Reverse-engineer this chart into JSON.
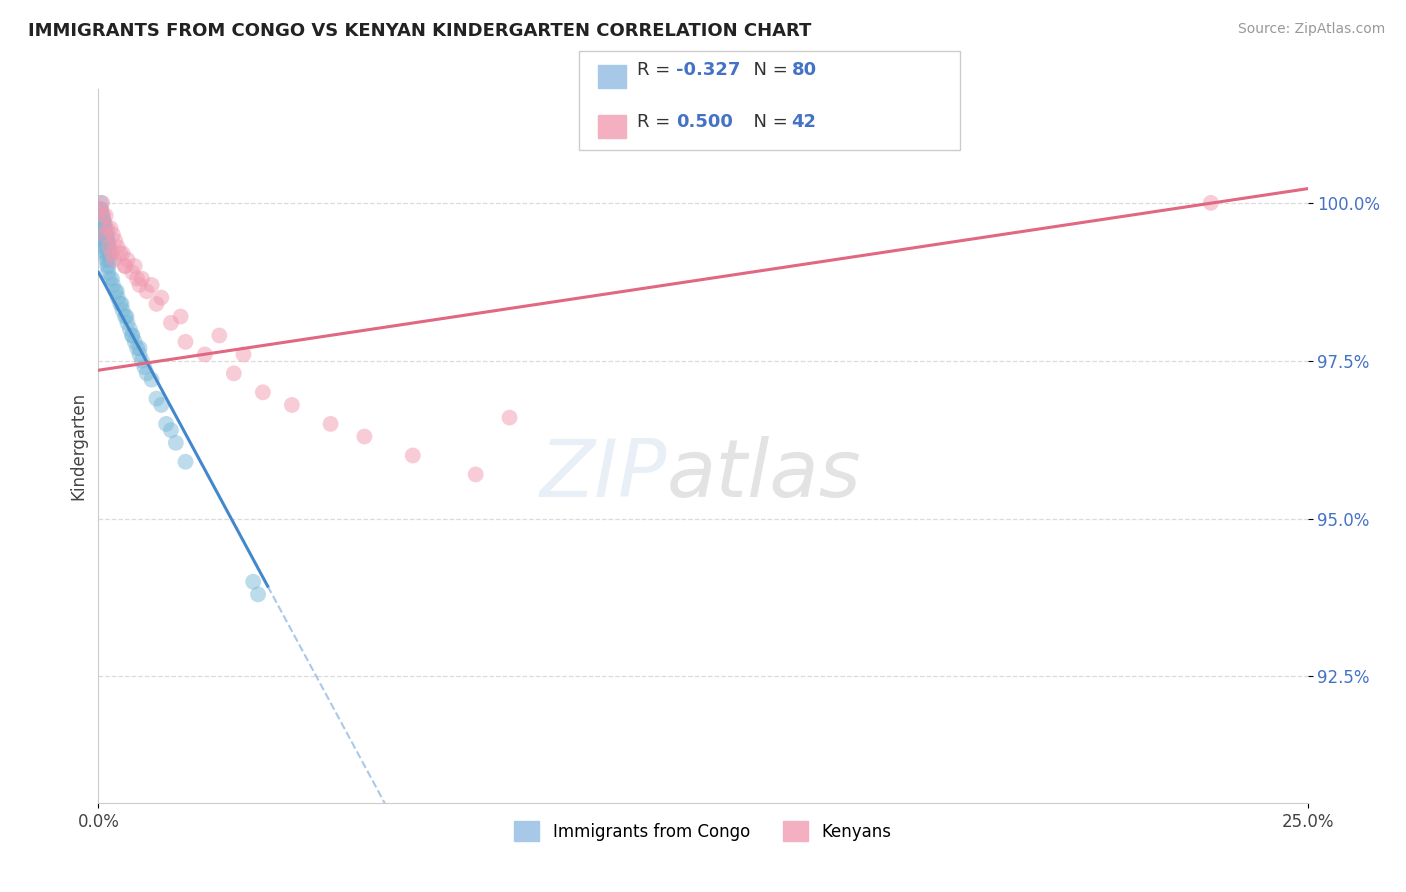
{
  "title": "IMMIGRANTS FROM CONGO VS KENYAN KINDERGARTEN CORRELATION CHART",
  "source": "Source: ZipAtlas.com",
  "ylabel_label": "Kindergarten",
  "legend_entries": [
    {
      "label": "Immigrants from Congo",
      "color": "#a8c8e8"
    },
    {
      "label": "Kenyans",
      "color": "#f4b0c0"
    }
  ],
  "r_blue": "-0.327",
  "n_blue": "80",
  "r_pink": "0.500",
  "n_pink": "42",
  "blue_scatter_color": "#7ab8d8",
  "pink_scatter_color": "#f09ab0",
  "blue_line_color": "#4488cc",
  "pink_line_color": "#e06880",
  "background_color": "#ffffff",
  "grid_color": "#d8d8d8",
  "yticks": [
    92.5,
    95.0,
    97.5,
    100.0
  ],
  "xticks": [
    0.0,
    25.0
  ],
  "xlim": [
    0.0,
    25.0
  ],
  "ylim": [
    90.5,
    101.8
  ],
  "blue_solid_xend": 3.5,
  "pink_solid_xend": 25.0,
  "blue_line_y0": 98.9,
  "blue_line_slope": -1.42,
  "pink_line_y0": 97.35,
  "pink_line_slope": 0.115,
  "blue_scatter_x": [
    0.05,
    0.05,
    0.08,
    0.1,
    0.12,
    0.14,
    0.16,
    0.18,
    0.2,
    0.22,
    0.05,
    0.07,
    0.09,
    0.11,
    0.13,
    0.15,
    0.17,
    0.19,
    0.21,
    0.23,
    0.06,
    0.08,
    0.1,
    0.12,
    0.14,
    0.16,
    0.18,
    0.2,
    0.22,
    0.25,
    0.03,
    0.05,
    0.07,
    0.09,
    0.11,
    0.13,
    0.15,
    0.17,
    0.19,
    0.21,
    0.04,
    0.06,
    0.08,
    0.1,
    0.12,
    0.14,
    0.16,
    0.18,
    0.2,
    0.23,
    0.3,
    0.4,
    0.5,
    0.6,
    0.7,
    0.8,
    0.9,
    1.0,
    1.2,
    1.4,
    0.35,
    0.45,
    0.55,
    0.65,
    0.75,
    0.85,
    0.95,
    1.1,
    1.3,
    1.5,
    0.28,
    0.38,
    0.48,
    0.58,
    0.7,
    0.85,
    1.6,
    1.8,
    3.2,
    3.3
  ],
  "blue_scatter_y": [
    100.0,
    99.9,
    99.8,
    99.7,
    99.7,
    99.6,
    99.5,
    99.5,
    99.4,
    99.3,
    99.9,
    99.8,
    99.7,
    99.6,
    99.6,
    99.5,
    99.4,
    99.3,
    99.3,
    99.2,
    99.8,
    99.7,
    99.7,
    99.6,
    99.5,
    99.5,
    99.4,
    99.3,
    99.2,
    99.1,
    99.8,
    99.7,
    99.6,
    99.5,
    99.4,
    99.4,
    99.3,
    99.2,
    99.1,
    99.0,
    99.7,
    99.6,
    99.5,
    99.4,
    99.3,
    99.2,
    99.1,
    99.0,
    98.9,
    98.8,
    98.7,
    98.5,
    98.3,
    98.1,
    97.9,
    97.7,
    97.5,
    97.3,
    96.9,
    96.5,
    98.6,
    98.4,
    98.2,
    98.0,
    97.8,
    97.6,
    97.4,
    97.2,
    96.8,
    96.4,
    98.8,
    98.6,
    98.4,
    98.2,
    97.9,
    97.7,
    96.2,
    95.9,
    94.0,
    93.8
  ],
  "pink_scatter_x": [
    0.05,
    0.1,
    0.18,
    0.3,
    0.4,
    0.5,
    0.6,
    0.75,
    0.9,
    1.1,
    0.08,
    0.15,
    0.25,
    0.35,
    0.45,
    0.55,
    0.7,
    0.85,
    1.0,
    1.2,
    1.5,
    1.8,
    2.2,
    2.8,
    3.4,
    4.0,
    4.8,
    5.5,
    6.5,
    7.8,
    0.12,
    0.22,
    0.32,
    0.55,
    0.8,
    1.3,
    1.7,
    2.5,
    3.0,
    8.5,
    0.28,
    23.0
  ],
  "pink_scatter_y": [
    99.9,
    99.8,
    99.6,
    99.5,
    99.3,
    99.2,
    99.1,
    99.0,
    98.8,
    98.7,
    100.0,
    99.8,
    99.6,
    99.4,
    99.2,
    99.0,
    98.9,
    98.7,
    98.6,
    98.4,
    98.1,
    97.8,
    97.6,
    97.3,
    97.0,
    96.8,
    96.5,
    96.3,
    96.0,
    95.7,
    99.5,
    99.3,
    99.1,
    99.0,
    98.8,
    98.5,
    98.2,
    97.9,
    97.6,
    96.6,
    99.2,
    100.0
  ]
}
